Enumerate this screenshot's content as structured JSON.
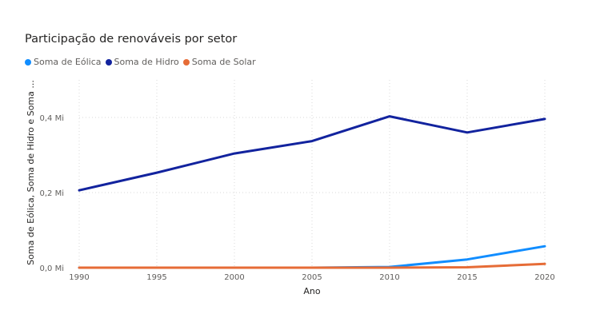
{
  "chart_data": {
    "type": "line",
    "title": "Participação de renováveis por setor",
    "xlabel": "Ano",
    "ylabel": "Soma de Eólica, Soma de Hidro e Soma ...",
    "x": [
      1990,
      1995,
      2000,
      2005,
      2010,
      2015,
      2020
    ],
    "x_tick_labels": [
      "1990",
      "1995",
      "2000",
      "2005",
      "2010",
      "2015",
      "2020"
    ],
    "y_tick_values": [
      0,
      0.2,
      0.4
    ],
    "y_tick_labels": [
      "0,0 Mi",
      "0,2 Mi",
      "0,4 Mi"
    ],
    "ylim": [
      0,
      0.5
    ],
    "grid": true,
    "legend_position": "top-left",
    "series": [
      {
        "name": "Soma de Eólica",
        "color": "#118DFF",
        "values": [
          0,
          0,
          0,
          0,
          0.002,
          0.022,
          0.057
        ]
      },
      {
        "name": "Soma de Hidro",
        "color": "#12239E",
        "values": [
          0.206,
          0.253,
          0.304,
          0.337,
          0.403,
          0.36,
          0.396
        ]
      },
      {
        "name": "Soma de Solar",
        "color": "#E66C37",
        "values": [
          0,
          0,
          0,
          0,
          0,
          0.001,
          0.01
        ]
      }
    ]
  }
}
